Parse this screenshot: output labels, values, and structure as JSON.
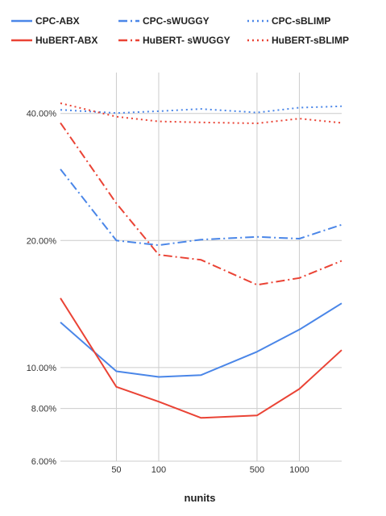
{
  "chart_data": {
    "type": "line",
    "title": "",
    "xlabel": "nunits",
    "ylabel": "",
    "x_scale": "log",
    "y_scale": "log",
    "xlim": [
      20,
      2000
    ],
    "ylim": [
      6,
      50
    ],
    "x_ticks": [
      50,
      100,
      500,
      1000
    ],
    "x_tick_labels": [
      "50",
      "100",
      "500",
      "1000"
    ],
    "y_ticks": [
      6,
      8,
      10,
      20,
      40
    ],
    "y_tick_labels": [
      "6.00%",
      "8.00%",
      "10.00%",
      "20.00%",
      "40.00%"
    ],
    "grid": "vertical at x ticks, horizontal at y ticks",
    "legend_position": "top",
    "x": [
      20,
      50,
      100,
      200,
      500,
      1000,
      2000
    ],
    "series": [
      {
        "name": "CPC-ABX",
        "color": "#4a86e8",
        "style": "solid",
        "values": [
          12.8,
          9.8,
          9.5,
          9.6,
          10.9,
          12.3,
          14.2
        ]
      },
      {
        "name": "HuBERT-ABX",
        "color": "#ea4335",
        "style": "solid",
        "values": [
          14.6,
          9.0,
          8.3,
          7.6,
          7.7,
          8.9,
          11.0
        ]
      },
      {
        "name": "CPC-sWUGGY",
        "color": "#4a86e8",
        "style": "dashdot",
        "values": [
          29.5,
          20.0,
          19.5,
          20.1,
          20.4,
          20.2,
          21.8
        ]
      },
      {
        "name": "HuBERT- sWUGGY",
        "color": "#ea4335",
        "style": "dashdot",
        "values": [
          38.0,
          24.5,
          18.5,
          18.0,
          15.7,
          16.3,
          17.9
        ]
      },
      {
        "name": "CPC-sBLIMP",
        "color": "#4a86e8",
        "style": "dotted",
        "values": [
          40.8,
          40.1,
          40.5,
          41.0,
          40.2,
          41.3,
          41.6
        ]
      },
      {
        "name": "HuBERT-sBLIMP",
        "color": "#ea4335",
        "style": "dotted",
        "values": [
          42.3,
          39.3,
          38.3,
          38.1,
          37.9,
          38.9,
          38.0
        ]
      }
    ]
  }
}
